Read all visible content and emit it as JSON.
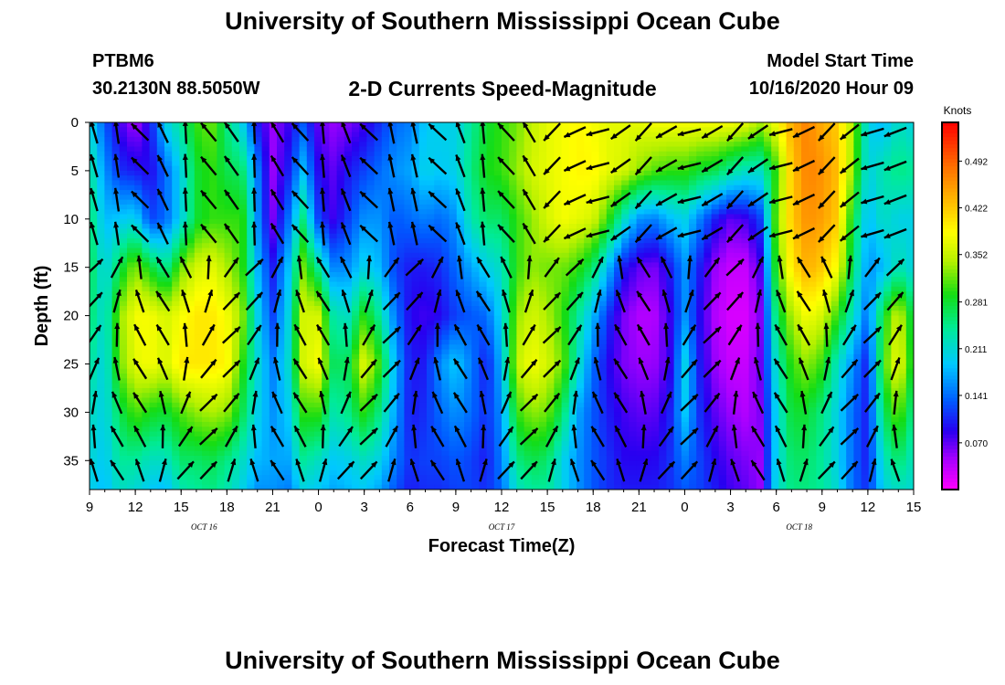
{
  "header": {
    "title": "University of Southern Mississippi Ocean Cube",
    "station_id": "PTBM6",
    "station_location": "30.2130N 88.5050W",
    "subtitle": "2-D Currents Speed-Magnitude",
    "model_start_label": "Model Start Time",
    "model_start_time": "10/16/2020 Hour 09"
  },
  "footer": {
    "title": "University of Southern Mississippi Ocean Cube"
  },
  "chart_data": {
    "type": "heatmap",
    "xlabel": "Forecast Time(Z)",
    "ylabel": "Depth (ft)",
    "x_start_hour": 9,
    "x_end_hour": 63,
    "x_tick_labels": [
      "9",
      "12",
      "15",
      "18",
      "21",
      "0",
      "3",
      "6",
      "9",
      "12",
      "15",
      "18",
      "21",
      "0",
      "3",
      "6",
      "9",
      "12",
      "15"
    ],
    "x_tick_hours": [
      9,
      12,
      15,
      18,
      21,
      24,
      27,
      30,
      33,
      36,
      39,
      42,
      45,
      48,
      51,
      54,
      57,
      60,
      63
    ],
    "date_labels": [
      {
        "text": "OCT 16",
        "hour": 16.5
      },
      {
        "text": "OCT 17",
        "hour": 36
      },
      {
        "text": "OCT 18",
        "hour": 55.5
      }
    ],
    "ylim": [
      0,
      38
    ],
    "y_reversed": true,
    "y_ticks": [
      0,
      5,
      10,
      15,
      20,
      25,
      30,
      35
    ],
    "colorbar": {
      "unit": "Knots",
      "range": [
        0,
        0.55
      ],
      "tick_labels": [
        "0.492",
        "0.422",
        "0.352",
        "0.281",
        "0.211",
        "0.141",
        "0.070"
      ],
      "tick_values": [
        0.492,
        0.422,
        0.352,
        0.281,
        0.211,
        0.141,
        0.07
      ]
    },
    "speed_field_hours": [
      9,
      10,
      11,
      12,
      13,
      14,
      15,
      16,
      17,
      18,
      19,
      20,
      21,
      22,
      23,
      24,
      25,
      26,
      27,
      28,
      29,
      30,
      31,
      32,
      33,
      34,
      35,
      36,
      37,
      38,
      39,
      40,
      41,
      42,
      43,
      44,
      45,
      46,
      47,
      48,
      49,
      50,
      51,
      52,
      53,
      54,
      55,
      56,
      57,
      58,
      59,
      60,
      61,
      62,
      63
    ],
    "speed_field_depths": [
      0,
      5,
      10,
      15,
      20,
      25,
      30,
      35,
      38
    ],
    "speed_field": [
      [
        0.21,
        0.24,
        0.26,
        0.27,
        0.26,
        0.24,
        0.22,
        0.21,
        0.2
      ],
      [
        0.13,
        0.16,
        0.18,
        0.2,
        0.21,
        0.2,
        0.2,
        0.19,
        0.18
      ],
      [
        0.08,
        0.11,
        0.19,
        0.27,
        0.33,
        0.32,
        0.27,
        0.24,
        0.22
      ],
      [
        0.04,
        0.1,
        0.2,
        0.33,
        0.38,
        0.37,
        0.31,
        0.24,
        0.21
      ],
      [
        0.1,
        0.09,
        0.12,
        0.28,
        0.38,
        0.38,
        0.29,
        0.22,
        0.19
      ],
      [
        0.2,
        0.14,
        0.14,
        0.24,
        0.36,
        0.36,
        0.28,
        0.22,
        0.18
      ],
      [
        0.24,
        0.2,
        0.2,
        0.32,
        0.38,
        0.4,
        0.31,
        0.26,
        0.23
      ],
      [
        0.3,
        0.28,
        0.28,
        0.36,
        0.4,
        0.4,
        0.33,
        0.26,
        0.24
      ],
      [
        0.32,
        0.3,
        0.3,
        0.37,
        0.4,
        0.4,
        0.34,
        0.27,
        0.25
      ],
      [
        0.25,
        0.27,
        0.3,
        0.34,
        0.38,
        0.39,
        0.33,
        0.25,
        0.23
      ],
      [
        0.2,
        0.26,
        0.3,
        0.3,
        0.33,
        0.3,
        0.27,
        0.22,
        0.2
      ],
      [
        0.1,
        0.15,
        0.16,
        0.18,
        0.2,
        0.21,
        0.2,
        0.18,
        0.16
      ],
      [
        0.05,
        0.05,
        0.06,
        0.1,
        0.12,
        0.15,
        0.16,
        0.17,
        0.16
      ],
      [
        0.08,
        0.1,
        0.14,
        0.18,
        0.2,
        0.21,
        0.19,
        0.17,
        0.15
      ],
      [
        0.13,
        0.18,
        0.25,
        0.32,
        0.36,
        0.36,
        0.3,
        0.24,
        0.2
      ],
      [
        0.07,
        0.09,
        0.12,
        0.24,
        0.36,
        0.38,
        0.3,
        0.22,
        0.19
      ],
      [
        0.05,
        0.07,
        0.08,
        0.15,
        0.23,
        0.26,
        0.23,
        0.19,
        0.17
      ],
      [
        0.06,
        0.1,
        0.12,
        0.16,
        0.22,
        0.27,
        0.25,
        0.2,
        0.18
      ],
      [
        0.08,
        0.12,
        0.16,
        0.2,
        0.3,
        0.37,
        0.3,
        0.22,
        0.19
      ],
      [
        0.11,
        0.14,
        0.16,
        0.18,
        0.24,
        0.3,
        0.25,
        0.2,
        0.17
      ],
      [
        0.14,
        0.16,
        0.13,
        0.12,
        0.15,
        0.18,
        0.17,
        0.15,
        0.13
      ],
      [
        0.15,
        0.17,
        0.14,
        0.1,
        0.09,
        0.1,
        0.1,
        0.11,
        0.1
      ],
      [
        0.19,
        0.2,
        0.15,
        0.1,
        0.08,
        0.1,
        0.11,
        0.12,
        0.11
      ],
      [
        0.2,
        0.19,
        0.14,
        0.11,
        0.09,
        0.16,
        0.14,
        0.12,
        0.11
      ],
      [
        0.2,
        0.2,
        0.16,
        0.14,
        0.12,
        0.19,
        0.16,
        0.13,
        0.12
      ],
      [
        0.24,
        0.25,
        0.23,
        0.17,
        0.13,
        0.15,
        0.14,
        0.12,
        0.12
      ],
      [
        0.28,
        0.29,
        0.26,
        0.2,
        0.14,
        0.1,
        0.11,
        0.1,
        0.11
      ],
      [
        0.3,
        0.3,
        0.26,
        0.22,
        0.2,
        0.18,
        0.16,
        0.15,
        0.14
      ],
      [
        0.32,
        0.33,
        0.3,
        0.3,
        0.33,
        0.35,
        0.3,
        0.25,
        0.22
      ],
      [
        0.35,
        0.36,
        0.33,
        0.33,
        0.36,
        0.38,
        0.33,
        0.27,
        0.24
      ],
      [
        0.37,
        0.37,
        0.36,
        0.32,
        0.34,
        0.36,
        0.32,
        0.26,
        0.24
      ],
      [
        0.38,
        0.38,
        0.38,
        0.32,
        0.3,
        0.32,
        0.26,
        0.2,
        0.2
      ],
      [
        0.39,
        0.39,
        0.37,
        0.3,
        0.24,
        0.22,
        0.17,
        0.16,
        0.16
      ],
      [
        0.38,
        0.39,
        0.36,
        0.26,
        0.18,
        0.14,
        0.13,
        0.13,
        0.13
      ],
      [
        0.37,
        0.37,
        0.3,
        0.18,
        0.11,
        0.09,
        0.1,
        0.11,
        0.11
      ],
      [
        0.37,
        0.36,
        0.22,
        0.1,
        0.06,
        0.06,
        0.08,
        0.09,
        0.1
      ],
      [
        0.37,
        0.33,
        0.16,
        0.07,
        0.04,
        0.05,
        0.07,
        0.09,
        0.1
      ],
      [
        0.38,
        0.31,
        0.15,
        0.06,
        0.04,
        0.05,
        0.07,
        0.09,
        0.1
      ],
      [
        0.38,
        0.3,
        0.18,
        0.1,
        0.08,
        0.08,
        0.1,
        0.11,
        0.11
      ],
      [
        0.38,
        0.3,
        0.2,
        0.16,
        0.16,
        0.2,
        0.19,
        0.15,
        0.13
      ],
      [
        0.38,
        0.28,
        0.15,
        0.1,
        0.09,
        0.1,
        0.11,
        0.12,
        0.12
      ],
      [
        0.38,
        0.27,
        0.1,
        0.05,
        0.04,
        0.05,
        0.07,
        0.09,
        0.1
      ],
      [
        0.38,
        0.24,
        0.07,
        0.03,
        0.02,
        0.03,
        0.05,
        0.07,
        0.08
      ],
      [
        0.37,
        0.22,
        0.08,
        0.03,
        0.02,
        0.03,
        0.04,
        0.06,
        0.07
      ],
      [
        0.34,
        0.22,
        0.12,
        0.08,
        0.06,
        0.07,
        0.06,
        0.05,
        0.05
      ],
      [
        0.38,
        0.3,
        0.32,
        0.3,
        0.26,
        0.22,
        0.2,
        0.2,
        0.21
      ],
      [
        0.44,
        0.42,
        0.42,
        0.4,
        0.34,
        0.3,
        0.28,
        0.26,
        0.25
      ],
      [
        0.47,
        0.47,
        0.46,
        0.44,
        0.38,
        0.33,
        0.28,
        0.26,
        0.25
      ],
      [
        0.44,
        0.46,
        0.45,
        0.42,
        0.36,
        0.3,
        0.25,
        0.24,
        0.24
      ],
      [
        0.42,
        0.43,
        0.42,
        0.38,
        0.3,
        0.22,
        0.2,
        0.2,
        0.21
      ],
      [
        0.34,
        0.33,
        0.28,
        0.26,
        0.22,
        0.16,
        0.14,
        0.14,
        0.14
      ],
      [
        0.2,
        0.2,
        0.18,
        0.16,
        0.14,
        0.1,
        0.1,
        0.1,
        0.11
      ],
      [
        0.18,
        0.23,
        0.22,
        0.18,
        0.28,
        0.3,
        0.26,
        0.22,
        0.2
      ],
      [
        0.22,
        0.25,
        0.2,
        0.23,
        0.36,
        0.38,
        0.32,
        0.26,
        0.22
      ],
      [
        0.2,
        0.24,
        0.2,
        0.2,
        0.26,
        0.27,
        0.24,
        0.22,
        0.21
      ]
    ]
  }
}
